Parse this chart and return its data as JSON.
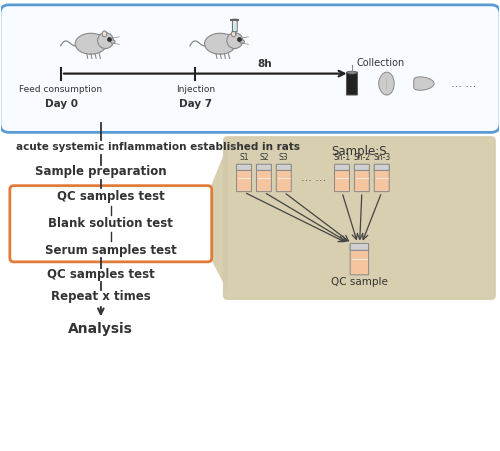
{
  "bg_color": "#ffffff",
  "top_box_fill": "#f8fbff",
  "top_box_edge": "#5b9bd5",
  "orange_box_fill": "#ffffff",
  "orange_box_edge": "#e07b39",
  "tan_bg_color": "#d4c9a8",
  "tube_body_fill": "#f5c5a0",
  "tube_top_fill": "#e8e8e8",
  "tube_outline": "#888888",
  "rat_color": "#cccccc",
  "rat_edge": "#888888",
  "organ_color": "#cccccc",
  "organ_edge": "#888888",
  "arrow_color": "#333333",
  "text_color": "#333333",
  "step1_label1": "Feed consumption",
  "step1_label2": "Day 0",
  "step2_label1": "Injection",
  "step2_label2": "Day 7",
  "time_label": "8h",
  "collection_label": "Collection",
  "main_text": "acute systemic inflammation established in rats",
  "flow_steps": [
    "Sample preparation",
    "QC samples test",
    "Blank solution test",
    "Serum samples test",
    "QC samples test",
    "Repeat x times",
    "Analysis"
  ],
  "sample_title": "Sample:S",
  "sample_labels": [
    "S1",
    "S2",
    "S3",
    "Sn-1",
    "Sn-2",
    "Sn-3"
  ],
  "dots_label": "... ...",
  "qc_label": "QC sample"
}
